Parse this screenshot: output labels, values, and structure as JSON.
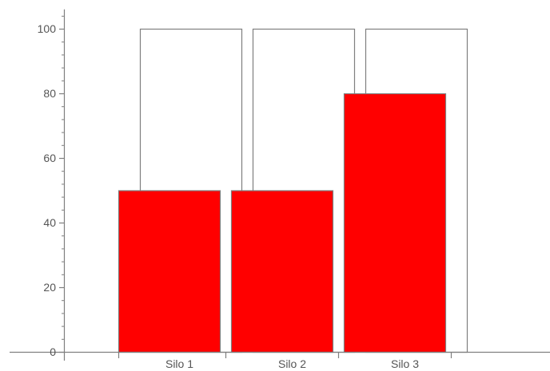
{
  "chart_data": {
    "type": "bar",
    "title": "",
    "xlabel": "",
    "ylabel": "",
    "categories": [
      "Silo 1",
      "Silo 2",
      "Silo 3"
    ],
    "series": [
      {
        "values": [
          100,
          100,
          100
        ],
        "color": "#ffffff",
        "stroke": "#7f7f7f"
      },
      {
        "values": [
          50,
          50,
          80
        ],
        "color": "#ff0000",
        "stroke": "#7f7f7f"
      }
    ],
    "y_ticks": [
      "0",
      "20",
      "40",
      "60",
      "80",
      "100"
    ],
    "ylim": [
      0,
      104
    ],
    "grid": false,
    "legend": "none"
  }
}
